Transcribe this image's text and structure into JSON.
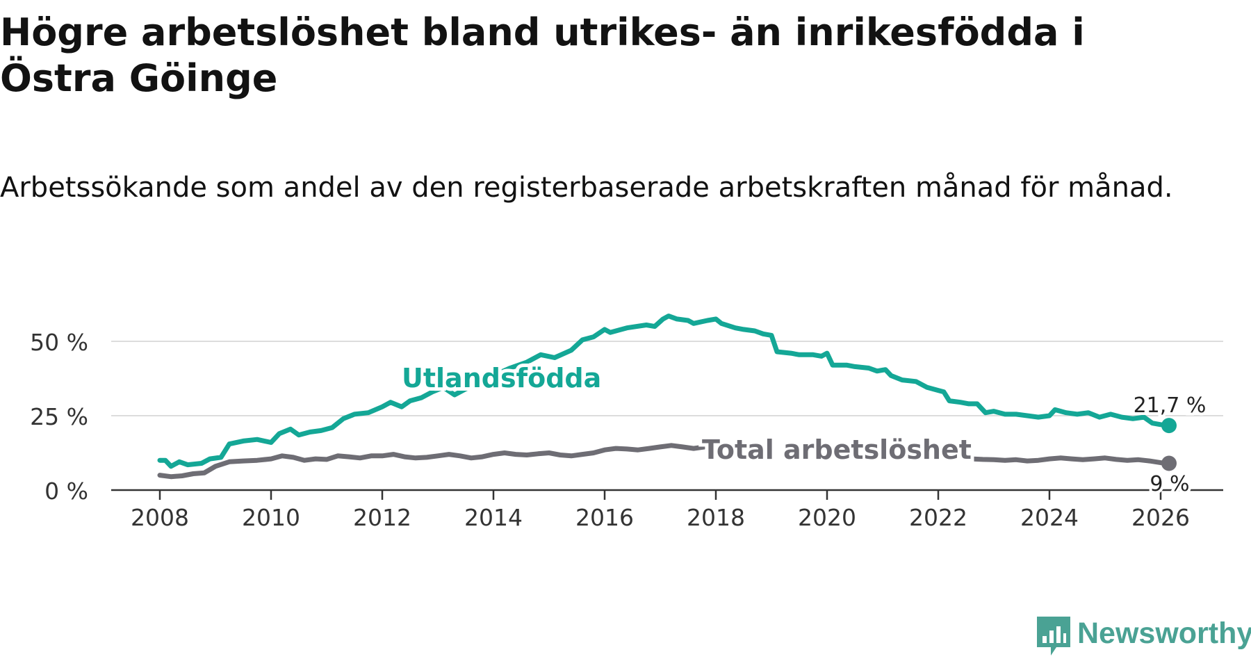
{
  "title": "Högre arbetslöshet bland utrikes- än inrikesfödda i Östra Göinge",
  "subtitle": "Arbetssökande som andel av den registerbaserade arbetskraften månad för månad.",
  "brand": {
    "name": "Newsworthy",
    "icon": "newsworthy-logo-icon"
  },
  "colors": {
    "foreign": "#14a796",
    "total": "#6e6d74",
    "grid": "#dcdcdc",
    "axis": "#333333",
    "brand": "#4aa294"
  },
  "chart_data": {
    "type": "line",
    "title": "Högre arbetslöshet bland utrikes- än inrikesfödda i Östra Göinge",
    "xlabel": "",
    "ylabel": "",
    "xlim": [
      2007.7,
      2026.9
    ],
    "ylim": [
      0,
      60
    ],
    "grid": true,
    "x_ticks": [
      2008,
      2010,
      2012,
      2014,
      2016,
      2018,
      2020,
      2022,
      2024,
      2026
    ],
    "x_tick_labels": [
      "2008",
      "2010",
      "2012",
      "2014",
      "2016",
      "2018",
      "2020",
      "2022",
      "2024",
      "2026"
    ],
    "y_ticks": [
      0,
      25,
      50
    ],
    "y_tick_labels": [
      "0 %",
      "25 %",
      "50 %"
    ],
    "series": [
      {
        "name": "Utlandsfödda",
        "label": "Utlandsfödda",
        "end_label": "21,7 %",
        "points": [
          [
            2008.0,
            10.0
          ],
          [
            2008.1,
            10.0
          ],
          [
            2008.2,
            8.0
          ],
          [
            2008.35,
            9.5
          ],
          [
            2008.5,
            8.5
          ],
          [
            2008.75,
            9.0
          ],
          [
            2008.9,
            10.5
          ],
          [
            2009.1,
            11.0
          ],
          [
            2009.25,
            15.5
          ],
          [
            2009.5,
            16.5
          ],
          [
            2009.75,
            17.0
          ],
          [
            2010.0,
            16.0
          ],
          [
            2010.15,
            19.0
          ],
          [
            2010.35,
            20.5
          ],
          [
            2010.5,
            18.5
          ],
          [
            2010.7,
            19.5
          ],
          [
            2010.9,
            20.0
          ],
          [
            2011.1,
            21.0
          ],
          [
            2011.3,
            24.0
          ],
          [
            2011.5,
            25.5
          ],
          [
            2011.75,
            26.0
          ],
          [
            2012.0,
            28.0
          ],
          [
            2012.15,
            29.5
          ],
          [
            2012.35,
            28.0
          ],
          [
            2012.5,
            30.0
          ],
          [
            2012.7,
            31.0
          ],
          [
            2012.9,
            33.0
          ],
          [
            2013.1,
            34.5
          ],
          [
            2013.3,
            32.0
          ],
          [
            2013.5,
            34.0
          ],
          [
            2013.75,
            36.0
          ],
          [
            2014.0,
            38.5
          ],
          [
            2014.3,
            41.0
          ],
          [
            2014.6,
            43.0
          ],
          [
            2014.85,
            45.5
          ],
          [
            2015.1,
            44.5
          ],
          [
            2015.4,
            47.0
          ],
          [
            2015.6,
            50.5
          ],
          [
            2015.8,
            51.5
          ],
          [
            2016.0,
            54.0
          ],
          [
            2016.1,
            53.0
          ],
          [
            2016.4,
            54.5
          ],
          [
            2016.75,
            55.5
          ],
          [
            2016.9,
            55.0
          ],
          [
            2017.05,
            57.5
          ],
          [
            2017.15,
            58.5
          ],
          [
            2017.3,
            57.5
          ],
          [
            2017.5,
            57.0
          ],
          [
            2017.6,
            56.0
          ],
          [
            2017.85,
            57.0
          ],
          [
            2018.0,
            57.5
          ],
          [
            2018.1,
            56.0
          ],
          [
            2018.35,
            54.5
          ],
          [
            2018.5,
            54.0
          ],
          [
            2018.7,
            53.5
          ],
          [
            2018.85,
            52.5
          ],
          [
            2019.0,
            52.0
          ],
          [
            2019.1,
            46.5
          ],
          [
            2019.35,
            46.0
          ],
          [
            2019.5,
            45.5
          ],
          [
            2019.75,
            45.5
          ],
          [
            2019.9,
            45.0
          ],
          [
            2020.0,
            46.0
          ],
          [
            2020.1,
            42.0
          ],
          [
            2020.35,
            42.0
          ],
          [
            2020.5,
            41.5
          ],
          [
            2020.75,
            41.0
          ],
          [
            2020.9,
            40.0
          ],
          [
            2021.05,
            40.5
          ],
          [
            2021.15,
            38.5
          ],
          [
            2021.35,
            37.0
          ],
          [
            2021.6,
            36.5
          ],
          [
            2021.8,
            34.5
          ],
          [
            2022.0,
            33.5
          ],
          [
            2022.1,
            33.0
          ],
          [
            2022.2,
            30.0
          ],
          [
            2022.4,
            29.5
          ],
          [
            2022.55,
            29.0
          ],
          [
            2022.7,
            29.0
          ],
          [
            2022.85,
            26.0
          ],
          [
            2023.0,
            26.5
          ],
          [
            2023.2,
            25.5
          ],
          [
            2023.4,
            25.5
          ],
          [
            2023.6,
            25.0
          ],
          [
            2023.8,
            24.5
          ],
          [
            2024.0,
            25.0
          ],
          [
            2024.1,
            27.0
          ],
          [
            2024.3,
            26.0
          ],
          [
            2024.5,
            25.5
          ],
          [
            2024.7,
            26.0
          ],
          [
            2024.9,
            24.5
          ],
          [
            2025.1,
            25.5
          ],
          [
            2025.3,
            24.5
          ],
          [
            2025.5,
            24.0
          ],
          [
            2025.7,
            24.5
          ],
          [
            2025.85,
            22.5
          ],
          [
            2026.0,
            22.0
          ],
          [
            2026.15,
            21.7
          ]
        ]
      },
      {
        "name": "Total arbetslöshet",
        "label": "Total arbetslöshet",
        "end_label": "9 %",
        "points": [
          [
            2008.0,
            5.0
          ],
          [
            2008.2,
            4.5
          ],
          [
            2008.4,
            4.8
          ],
          [
            2008.6,
            5.5
          ],
          [
            2008.8,
            5.8
          ],
          [
            2009.0,
            8.0
          ],
          [
            2009.25,
            9.5
          ],
          [
            2009.5,
            9.8
          ],
          [
            2009.75,
            10.0
          ],
          [
            2010.0,
            10.5
          ],
          [
            2010.2,
            11.5
          ],
          [
            2010.4,
            11.0
          ],
          [
            2010.6,
            10.0
          ],
          [
            2010.8,
            10.5
          ],
          [
            2011.0,
            10.3
          ],
          [
            2011.2,
            11.5
          ],
          [
            2011.4,
            11.2
          ],
          [
            2011.6,
            10.8
          ],
          [
            2011.8,
            11.5
          ],
          [
            2012.0,
            11.5
          ],
          [
            2012.2,
            12.0
          ],
          [
            2012.4,
            11.2
          ],
          [
            2012.6,
            10.8
          ],
          [
            2012.8,
            11.0
          ],
          [
            2013.0,
            11.5
          ],
          [
            2013.2,
            12.0
          ],
          [
            2013.4,
            11.5
          ],
          [
            2013.6,
            10.8
          ],
          [
            2013.8,
            11.2
          ],
          [
            2014.0,
            12.0
          ],
          [
            2014.2,
            12.5
          ],
          [
            2014.4,
            12.0
          ],
          [
            2014.6,
            11.8
          ],
          [
            2014.8,
            12.2
          ],
          [
            2015.0,
            12.5
          ],
          [
            2015.2,
            11.8
          ],
          [
            2015.4,
            11.5
          ],
          [
            2015.6,
            12.0
          ],
          [
            2015.8,
            12.5
          ],
          [
            2016.0,
            13.5
          ],
          [
            2016.2,
            14.0
          ],
          [
            2016.4,
            13.8
          ],
          [
            2016.6,
            13.5
          ],
          [
            2016.8,
            14.0
          ],
          [
            2017.0,
            14.5
          ],
          [
            2017.2,
            15.0
          ],
          [
            2017.4,
            14.5
          ],
          [
            2017.6,
            14.0
          ],
          [
            2017.8,
            14.5
          ],
          [
            2022.6,
            10.5
          ],
          [
            2022.8,
            10.3
          ],
          [
            2023.0,
            10.2
          ],
          [
            2023.2,
            10.0
          ],
          [
            2023.4,
            10.2
          ],
          [
            2023.6,
            9.8
          ],
          [
            2023.8,
            10.0
          ],
          [
            2024.0,
            10.5
          ],
          [
            2024.2,
            10.8
          ],
          [
            2024.4,
            10.5
          ],
          [
            2024.6,
            10.2
          ],
          [
            2024.8,
            10.5
          ],
          [
            2025.0,
            10.8
          ],
          [
            2025.2,
            10.3
          ],
          [
            2025.4,
            10.0
          ],
          [
            2025.6,
            10.2
          ],
          [
            2025.8,
            9.8
          ],
          [
            2026.0,
            9.2
          ],
          [
            2026.15,
            9.0
          ]
        ]
      }
    ]
  }
}
